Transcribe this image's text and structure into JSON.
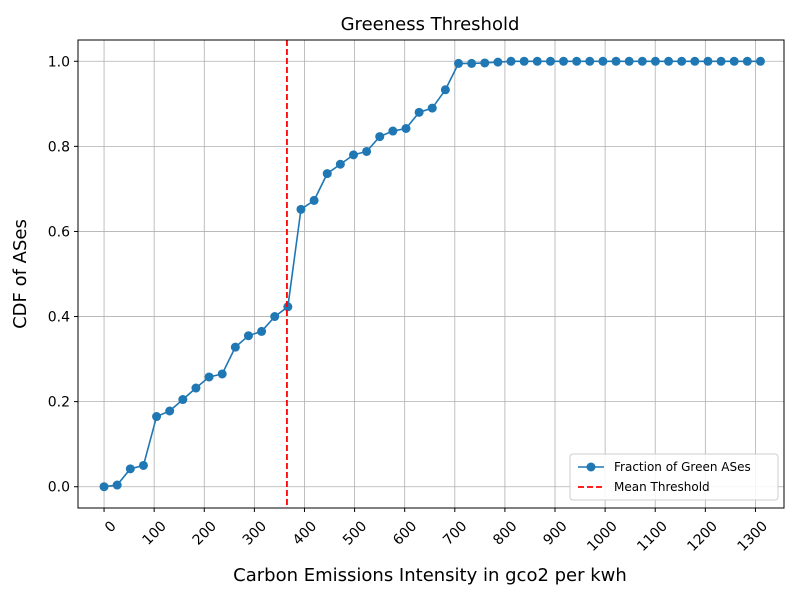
{
  "chart_data": {
    "type": "line",
    "title": "Greeness Threshold",
    "xlabel": "Carbon Emissions Intensity in gco2 per kwh",
    "ylabel": "CDF of ASes",
    "xlim": [
      -52,
      1357
    ],
    "ylim": [
      -0.05,
      1.05
    ],
    "x_ticks": [
      0,
      100,
      200,
      300,
      400,
      500,
      600,
      700,
      800,
      900,
      1000,
      1100,
      1200,
      1300
    ],
    "x_tick_labels": [
      "0",
      "100",
      "200",
      "300",
      "400",
      "500",
      "600",
      "700",
      "800",
      "900",
      "1000",
      "1100",
      "1200",
      "1300"
    ],
    "y_ticks": [
      0.0,
      0.2,
      0.4,
      0.6,
      0.8,
      1.0
    ],
    "y_tick_labels": [
      "0.0",
      "0.2",
      "0.4",
      "0.6",
      "0.8",
      "1.0"
    ],
    "grid": true,
    "legend_position": "bottom-right",
    "series": [
      {
        "name": "Fraction of Green ASes",
        "color": "#1f77b4",
        "marker": "circle",
        "x": [
          0,
          26.2,
          52.4,
          78.6,
          104.8,
          131,
          157.2,
          183.4,
          209.6,
          235.8,
          262,
          288.2,
          314.4,
          340.6,
          366.8,
          393,
          419.2,
          445.4,
          471.6,
          497.8,
          524,
          550.2,
          576.4,
          602.6,
          628.8,
          655,
          681.2,
          707.4,
          733.6,
          759.8,
          786,
          812.2,
          838.4,
          864.6,
          890.8,
          917,
          943.2,
          969.4,
          995.6,
          1021.8,
          1048,
          1074.2,
          1100.4,
          1126.6,
          1152.8,
          1179,
          1205.2,
          1231.4,
          1257.6,
          1283.8,
          1310
        ],
        "y": [
          0.0,
          0.004,
          0.042,
          0.05,
          0.165,
          0.178,
          0.205,
          0.232,
          0.258,
          0.265,
          0.328,
          0.355,
          0.365,
          0.4,
          0.423,
          0.652,
          0.673,
          0.736,
          0.758,
          0.78,
          0.788,
          0.823,
          0.836,
          0.842,
          0.88,
          0.89,
          0.933,
          0.995,
          0.995,
          0.996,
          0.998,
          1.0,
          1.0,
          1.0,
          1.0,
          1.0,
          1.0,
          1.0,
          1.0,
          1.0,
          1.0,
          1.0,
          1.0,
          1.0,
          1.0,
          1.0,
          1.0,
          1.0,
          1.0,
          1.0,
          1.0
        ]
      }
    ],
    "reference_lines": [
      {
        "name": "Mean Threshold",
        "orientation": "vertical",
        "x": 365,
        "color": "#ff0000",
        "style": "dashed"
      }
    ]
  }
}
